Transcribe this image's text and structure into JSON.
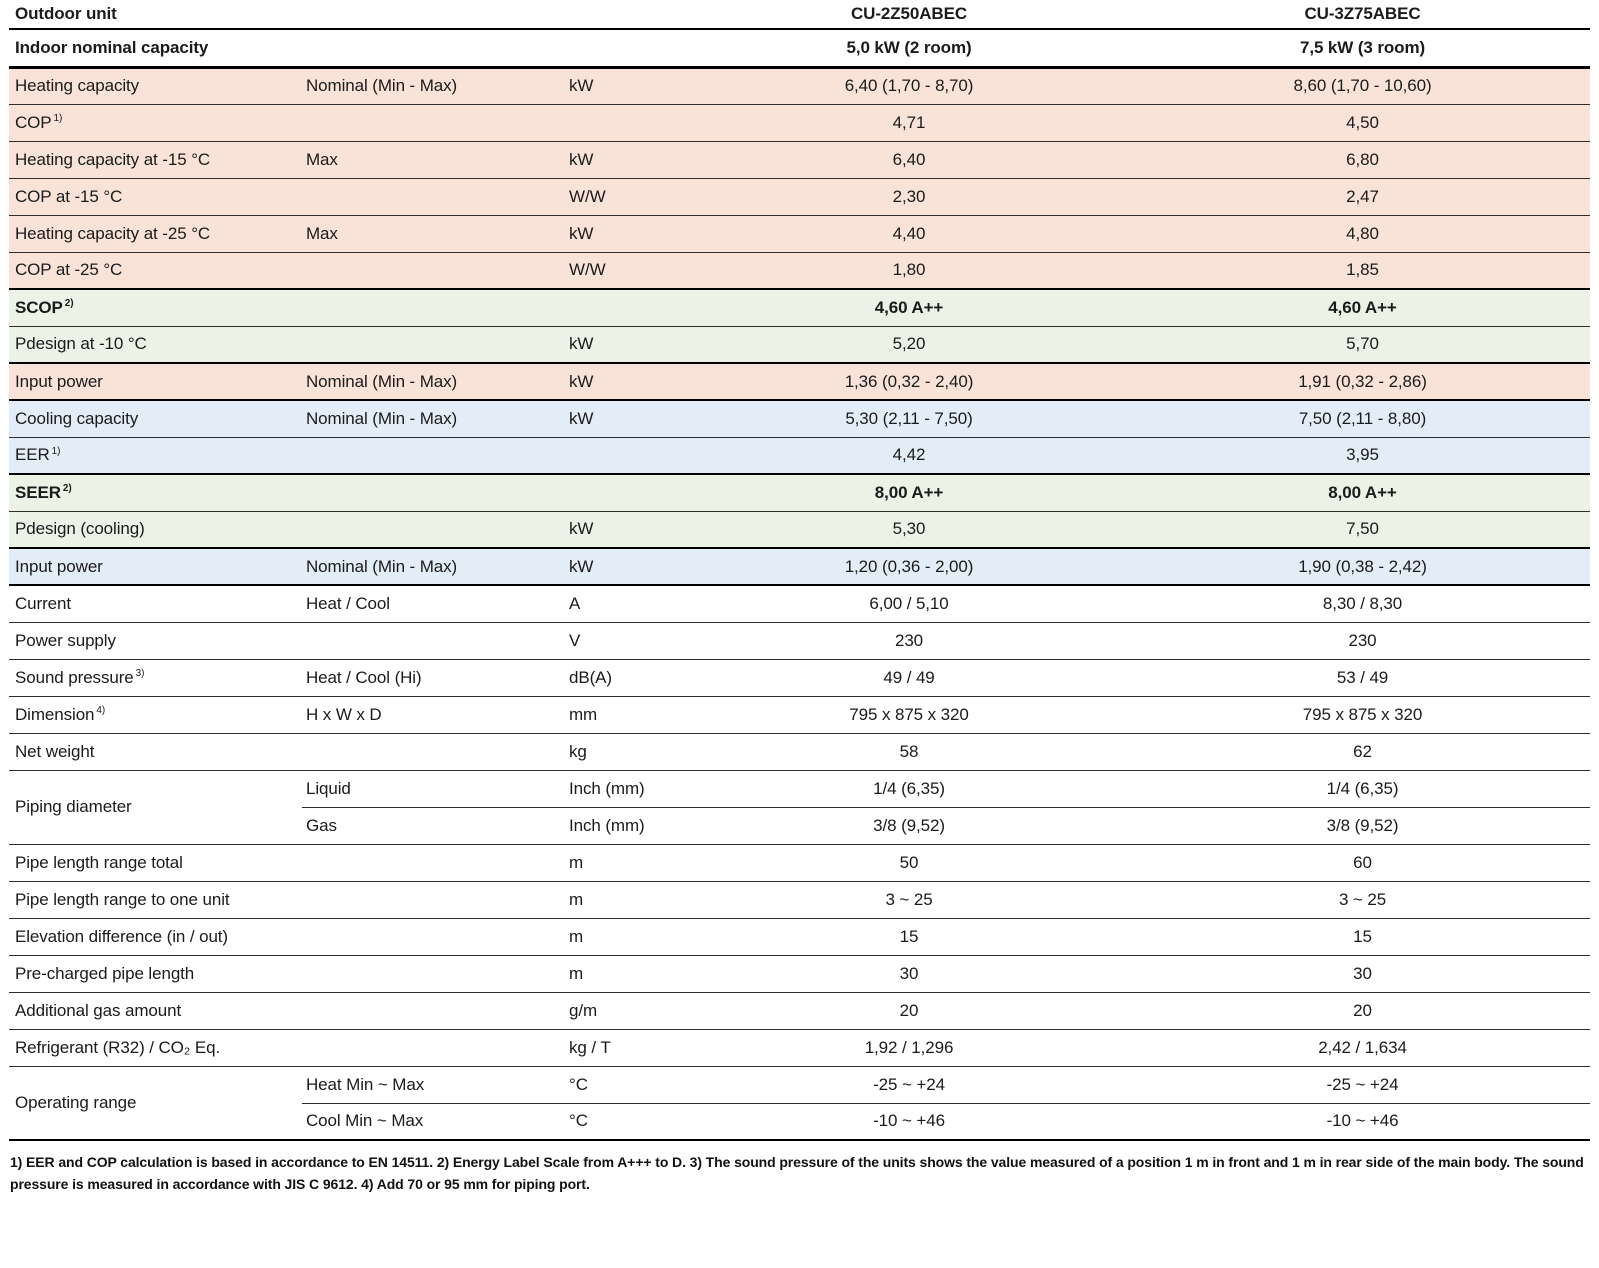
{
  "header": {
    "col1": "Outdoor unit",
    "models": [
      "CU-2Z50ABEC",
      "CU-3Z75ABEC"
    ],
    "capacity_label": "Indoor nominal capacity",
    "capacities": [
      "5,0 kW (2 room)",
      "7,5 kW (3 room)"
    ]
  },
  "colors": {
    "pink": "#f9e3d9",
    "green": "#ecf3e6",
    "blue": "#e3edf7",
    "border": "#000000"
  },
  "rows": [
    {
      "label": "Heating capacity",
      "sup": "",
      "sub": "Nominal (Min - Max)",
      "unit": "kW",
      "v1": "6,40 (1,70 - 8,70)",
      "v2": "8,60 (1,70 - 10,60)",
      "bg": "pink"
    },
    {
      "label": "COP",
      "sup": "1)",
      "sub": "",
      "unit": "",
      "v1": "4,71",
      "v2": "4,50",
      "bg": "pink"
    },
    {
      "label": "Heating capacity at -15 °C",
      "sup": "",
      "sub": "Max",
      "unit": "kW",
      "v1": "6,40",
      "v2": "6,80",
      "bg": "pink"
    },
    {
      "label": "COP at -15 °C",
      "sup": "",
      "sub": "",
      "unit": "W/W",
      "v1": "2,30",
      "v2": "2,47",
      "bg": "pink"
    },
    {
      "label": "Heating capacity at -25 °C",
      "sup": "",
      "sub": "Max",
      "unit": "kW",
      "v1": "4,40",
      "v2": "4,80",
      "bg": "pink"
    },
    {
      "label": "COP at -25 °C",
      "sup": "",
      "sub": "",
      "unit": "W/W",
      "v1": "1,80",
      "v2": "1,85",
      "bg": "pink"
    },
    {
      "label": "SCOP",
      "sup": "2)",
      "sub": "",
      "unit": "",
      "v1": "4,60 A++",
      "v2": "4,60 A++",
      "bg": "green",
      "bold": true
    },
    {
      "label": "Pdesign at -10 °C",
      "sup": "",
      "sub": "",
      "unit": "kW",
      "v1": "5,20",
      "v2": "5,70",
      "bg": "green"
    },
    {
      "label": "Input power",
      "sup": "",
      "sub": "Nominal (Min - Max)",
      "unit": "kW",
      "v1": "1,36 (0,32 - 2,40)",
      "v2": "1,91 (0,32 - 2,86)",
      "bg": "pink"
    },
    {
      "label": "Cooling capacity",
      "sup": "",
      "sub": "Nominal (Min - Max)",
      "unit": "kW",
      "v1": "5,30 (2,11 - 7,50)",
      "v2": "7,50 (2,11 - 8,80)",
      "bg": "blue"
    },
    {
      "label": "EER",
      "sup": "1)",
      "sub": "",
      "unit": "",
      "v1": "4,42",
      "v2": "3,95",
      "bg": "blue"
    },
    {
      "label": "SEER",
      "sup": "2)",
      "sub": "",
      "unit": "",
      "v1": "8,00 A++",
      "v2": "8,00 A++",
      "bg": "green",
      "bold": true
    },
    {
      "label": "Pdesign (cooling)",
      "sup": "",
      "sub": "",
      "unit": "kW",
      "v1": "5,30",
      "v2": "7,50",
      "bg": "green"
    },
    {
      "label": "Input power",
      "sup": "",
      "sub": "Nominal (Min - Max)",
      "unit": "kW",
      "v1": "1,20 (0,36 - 2,00)",
      "v2": "1,90 (0,38 - 2,42)",
      "bg": "blue"
    },
    {
      "label": "Current",
      "sup": "",
      "sub": "Heat / Cool",
      "unit": "A",
      "v1": "6,00 / 5,10",
      "v2": "8,30 / 8,30",
      "bg": "white"
    },
    {
      "label": "Power supply",
      "sup": "",
      "sub": "",
      "unit": "V",
      "v1": "230",
      "v2": "230",
      "bg": "white"
    },
    {
      "label": "Sound pressure",
      "sup": "3)",
      "sub": "Heat / Cool (Hi)",
      "unit": "dB(A)",
      "v1": "49 / 49",
      "v2": "53 / 49",
      "bg": "white"
    },
    {
      "label": "Dimension",
      "sup": "4)",
      "sub": "H x W x D",
      "unit": "mm",
      "v1": "795 x 875 x 320",
      "v2": "795 x 875 x 320",
      "bg": "white"
    },
    {
      "label": "Net weight",
      "sup": "",
      "sub": "",
      "unit": "kg",
      "v1": "58",
      "v2": "62",
      "bg": "white"
    },
    {
      "label": "Piping diameter",
      "sup": "",
      "rowspan": 2,
      "sub": "Liquid",
      "unit": "Inch (mm)",
      "v1": "1/4 (6,35)",
      "v2": "1/4 (6,35)",
      "bg": "white"
    },
    {
      "merged": true,
      "sub": "Gas",
      "unit": "Inch (mm)",
      "v1": "3/8 (9,52)",
      "v2": "3/8 (9,52)",
      "bg": "white"
    },
    {
      "label": "Pipe length range total",
      "sup": "",
      "sub": "",
      "unit": "m",
      "v1": "50",
      "v2": "60",
      "bg": "white"
    },
    {
      "label": "Pipe length range to one unit",
      "sup": "",
      "sub": "",
      "unit": "m",
      "v1": "3 ~ 25",
      "v2": "3 ~ 25",
      "bg": "white"
    },
    {
      "label": "Elevation difference (in / out)",
      "sup": "",
      "sub": "",
      "unit": "m",
      "v1": "15",
      "v2": "15",
      "bg": "white"
    },
    {
      "label": "Pre-charged pipe length",
      "sup": "",
      "sub": "",
      "unit": "m",
      "v1": "30",
      "v2": "30",
      "bg": "white"
    },
    {
      "label": "Additional gas amount",
      "sup": "",
      "sub": "",
      "unit": "g/m",
      "v1": "20",
      "v2": "20",
      "bg": "white"
    },
    {
      "label": "Refrigerant (R32) / CO₂ Eq.",
      "sup": "",
      "sub": "",
      "unit": "kg / T",
      "v1": "1,92 / 1,296",
      "v2": "2,42 / 1,634",
      "bg": "white"
    },
    {
      "label": "Operating range",
      "sup": "",
      "rowspan": 2,
      "sub": "Heat Min ~ Max",
      "unit": "°C",
      "v1": "-25 ~ +24",
      "v2": "-25 ~ +24",
      "bg": "white"
    },
    {
      "merged": true,
      "sub": "Cool Min ~ Max",
      "unit": "°C",
      "v1": "-10 ~ +46",
      "v2": "-10 ~ +46",
      "bg": "white"
    }
  ],
  "footnote": "1) EER and COP calculation is based in accordance to EN 14511. 2) Energy Label Scale from A+++ to D. 3) The sound pressure of the units shows the value measured of a position 1 m in front and 1 m in rear side of the main body. The sound pressure is measured in accordance with JIS C 9612. 4) Add 70 or 95 mm for piping port."
}
